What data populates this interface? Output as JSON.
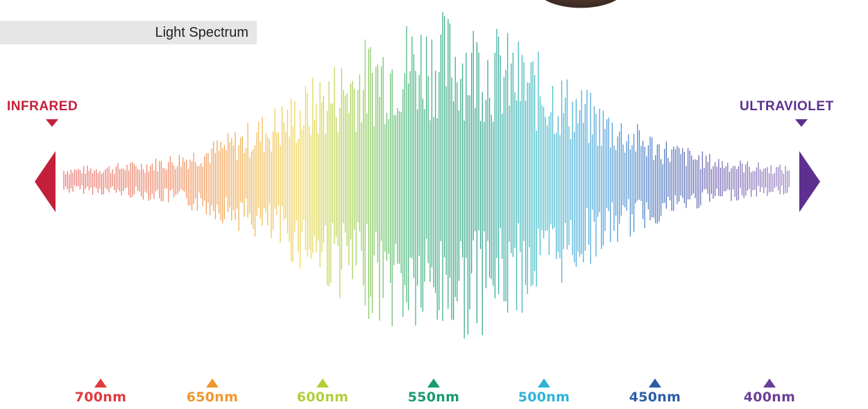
{
  "caption": "Light Spectrum",
  "left_label": "INFRARED",
  "right_label": "ULTRAVIOLET",
  "colors": {
    "infrared": "#c41f3a",
    "ultraviolet": "#5d2f8f",
    "caption_bg": "#e6e6e6"
  },
  "wavelength_markers": [
    {
      "label": "700nm",
      "color": "#e03a3e"
    },
    {
      "label": "650nm",
      "color": "#f0962e"
    },
    {
      "label": "600nm",
      "color": "#b2cf3a"
    },
    {
      "label": "550nm",
      "color": "#179b6b"
    },
    {
      "label": "500nm",
      "color": "#2fb2d8"
    },
    {
      "label": "450nm",
      "color": "#2c5ea8"
    },
    {
      "label": "400nm",
      "color": "#6a3f96"
    }
  ]
}
